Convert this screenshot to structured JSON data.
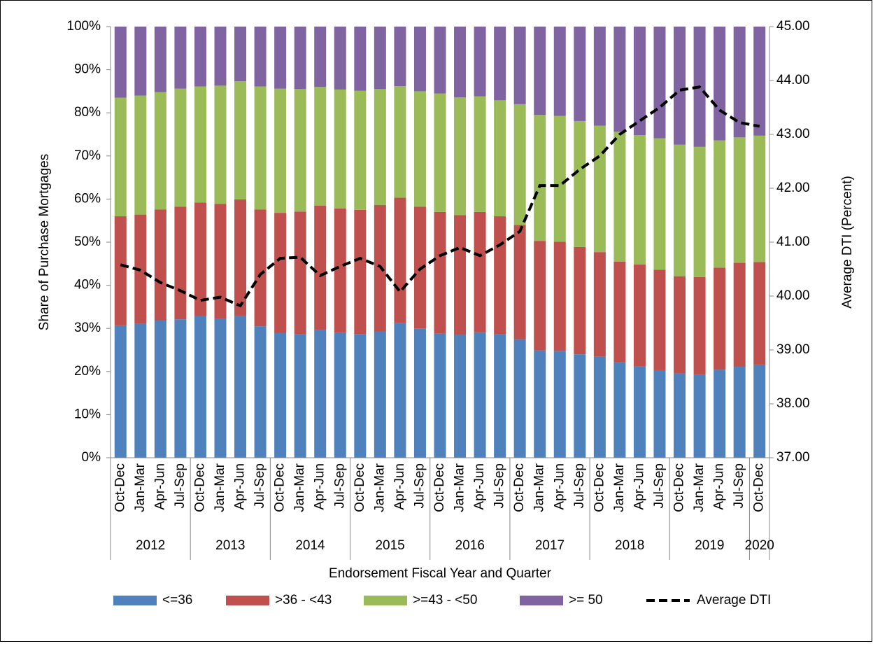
{
  "chart_data": {
    "type": "bar",
    "stacked": true,
    "x_label": "Endorsement Fiscal Year and Quarter",
    "y_label": "Share of Purchase Mortgages",
    "y2_label": "Average DTI (Percent)",
    "categories": [
      "Oct-Dec",
      "Jan-Mar",
      "Apr-Jun",
      "Jul-Sep",
      "Oct-Dec",
      "Jan-Mar",
      "Apr-Jun",
      "Jul-Sep",
      "Oct-Dec",
      "Jan-Mar",
      "Apr-Jun",
      "Jul-Sep",
      "Oct-Dec",
      "Jan-Mar",
      "Apr-Jun",
      "Jul-Sep",
      "Oct-Dec",
      "Jan-Mar",
      "Apr-Jun",
      "Jul-Sep",
      "Oct-Dec",
      "Jan-Mar",
      "Apr-Jun",
      "Jul-Sep",
      "Oct-Dec",
      "Jan-Mar",
      "Apr-Jun",
      "Jul-Sep",
      "Oct-Dec",
      "Jan-Mar",
      "Apr-Jun",
      "Jul-Sep",
      "Oct-Dec"
    ],
    "groups": [
      "2012",
      "2013",
      "2014",
      "2015",
      "2016",
      "2017",
      "2018",
      "2019",
      "2020"
    ],
    "series": [
      {
        "name": "<=36",
        "color": "#4f81bd",
        "values": [
          30.7,
          31.1,
          31.9,
          32.1,
          32.8,
          32.3,
          32.9,
          30.5,
          28.9,
          28.6,
          29.6,
          29.0,
          28.7,
          29.3,
          31.3,
          30.0,
          28.8,
          28.5,
          29.1,
          28.6,
          27.5,
          24.9,
          24.8,
          24.0,
          23.4,
          22.1,
          21.2,
          20.3,
          19.5,
          19.3,
          20.4,
          21.1,
          21.6
        ]
      },
      {
        "name": ">36 - <43",
        "color": "#c0504d",
        "values": [
          25.3,
          25.3,
          25.7,
          26.1,
          26.4,
          26.6,
          27.0,
          27.1,
          27.9,
          28.5,
          28.9,
          28.8,
          28.8,
          29.3,
          29.0,
          28.2,
          28.2,
          27.8,
          27.9,
          27.4,
          26.5,
          25.4,
          25.3,
          24.9,
          24.3,
          23.4,
          23.6,
          23.3,
          22.6,
          22.6,
          23.7,
          24.1,
          23.8
        ]
      },
      {
        "name": ">=43 - <50",
        "color": "#9bbb59",
        "values": [
          27.5,
          27.6,
          27.2,
          27.4,
          26.9,
          27.4,
          27.4,
          28.5,
          28.8,
          28.4,
          27.5,
          27.6,
          27.6,
          26.9,
          25.9,
          26.8,
          27.5,
          27.3,
          26.8,
          26.9,
          28.0,
          29.2,
          29.2,
          29.2,
          29.3,
          30.1,
          30.0,
          30.5,
          30.5,
          30.2,
          29.5,
          29.1,
          29.3
        ]
      },
      {
        "name": ">= 50",
        "color": "#8064a2",
        "values": [
          16.5,
          16.0,
          15.2,
          14.4,
          13.9,
          13.7,
          12.7,
          13.9,
          14.4,
          14.5,
          14.0,
          14.6,
          14.9,
          14.5,
          13.8,
          15.0,
          15.5,
          16.4,
          16.2,
          17.1,
          18.0,
          20.5,
          20.7,
          21.9,
          23.0,
          24.4,
          25.2,
          25.9,
          27.4,
          27.9,
          26.4,
          25.7,
          25.3
        ]
      },
      {
        "name": "Average DTI",
        "type": "line",
        "axis": "y2",
        "color": "#000000",
        "dashed": true,
        "values": [
          40.58,
          40.48,
          40.25,
          40.1,
          39.92,
          39.98,
          39.82,
          40.4,
          40.7,
          40.72,
          40.38,
          40.55,
          40.7,
          40.55,
          40.08,
          40.5,
          40.75,
          40.9,
          40.75,
          40.95,
          41.2,
          42.05,
          42.05,
          42.35,
          42.6,
          43.0,
          43.25,
          43.5,
          43.82,
          43.88,
          43.45,
          43.22,
          43.15
        ]
      }
    ],
    "ylim": [
      0,
      100
    ],
    "yticks": [
      {
        "value": 0,
        "label": "0%"
      },
      {
        "value": 10,
        "label": "10%"
      },
      {
        "value": 20,
        "label": "20%"
      },
      {
        "value": 30,
        "label": "30%"
      },
      {
        "value": 40,
        "label": "40%"
      },
      {
        "value": 50,
        "label": "50%"
      },
      {
        "value": 60,
        "label": "60%"
      },
      {
        "value": 70,
        "label": "70%"
      },
      {
        "value": 80,
        "label": "80%"
      },
      {
        "value": 90,
        "label": "90%"
      },
      {
        "value": 100,
        "label": "100%"
      }
    ],
    "y2lim": [
      37,
      45
    ],
    "y2ticks": [
      {
        "value": 37,
        "label": "37.00"
      },
      {
        "value": 38,
        "label": "38.00"
      },
      {
        "value": 39,
        "label": "39.00"
      },
      {
        "value": 40,
        "label": "40.00"
      },
      {
        "value": 41,
        "label": "41.00"
      },
      {
        "value": 42,
        "label": "42.00"
      },
      {
        "value": 43,
        "label": "43.00"
      },
      {
        "value": 44,
        "label": "44.00"
      },
      {
        "value": 45,
        "label": "45.00"
      }
    ],
    "legend": "bottom"
  }
}
